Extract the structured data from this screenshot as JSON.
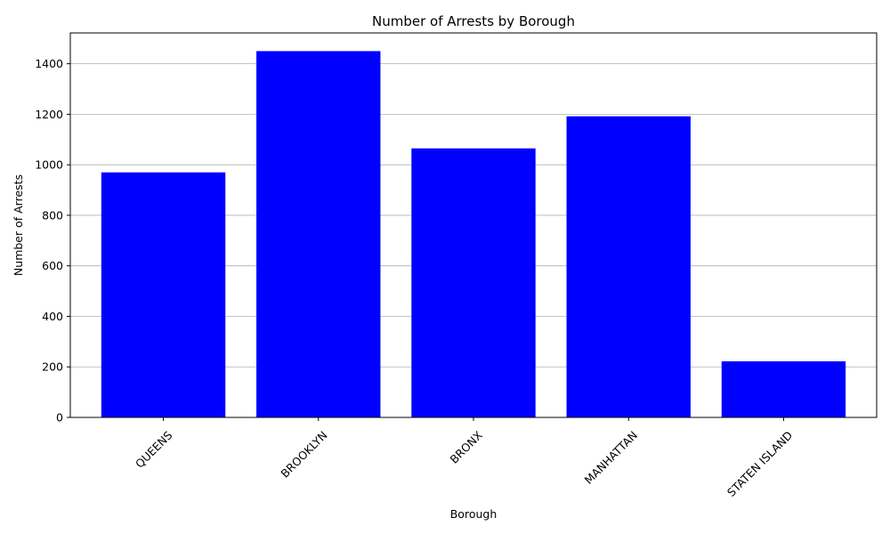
{
  "chart_data": {
    "type": "bar",
    "title": "Number of Arrests by Borough",
    "xlabel": "Borough",
    "ylabel": "Number of Arrests",
    "categories": [
      "QUEENS",
      "BROOKLYN",
      "BRONX",
      "MANHATTAN",
      "STATEN ISLAND"
    ],
    "values": [
      970,
      1450,
      1065,
      1192,
      222
    ],
    "yticks": [
      0,
      200,
      400,
      600,
      800,
      1000,
      1200,
      1400
    ],
    "ylim": [
      0,
      1522
    ],
    "grid": "y",
    "bar_color": "#0000ff",
    "tick_rotation": 45
  }
}
